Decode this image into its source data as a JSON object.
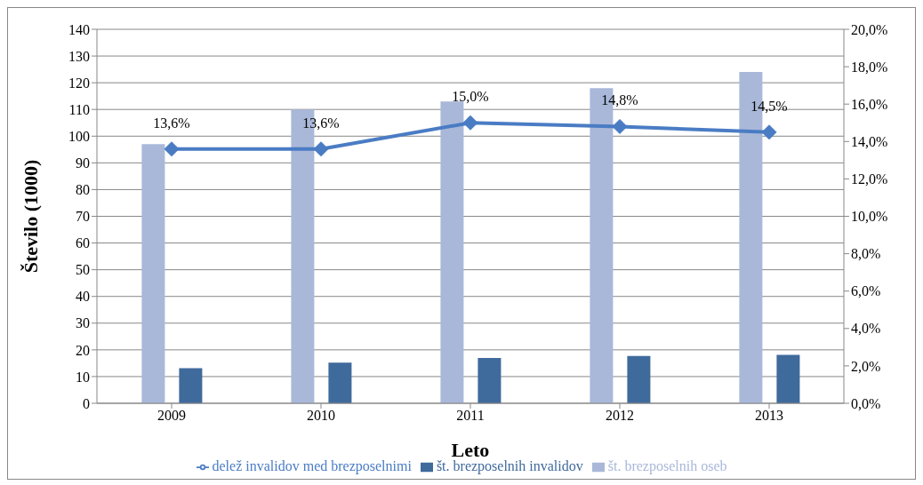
{
  "chart_data": {
    "type": "bar",
    "xlabel": "Leto",
    "ylabel": "Število (1000)",
    "categories": [
      "2009",
      "2010",
      "2011",
      "2012",
      "2013"
    ],
    "series": [
      {
        "name": "št. brezposelnih oseb",
        "color": "#a9b8d9",
        "values": [
          97,
          110,
          113,
          118,
          124
        ]
      },
      {
        "name": "št. brezposelnih invalidov",
        "color": "#3f6a9c",
        "values": [
          13.1,
          15.2,
          17,
          17.7,
          18.1
        ]
      },
      {
        "name": "delež invalidov med brezposelnimi",
        "type": "line",
        "axis": "y2",
        "color": "#4a7cc4",
        "marker": "diamond",
        "values": [
          13.6,
          13.6,
          15.0,
          14.8,
          14.5
        ],
        "value_labels": [
          "13,6%",
          "13,6%",
          "15,0%",
          "14,8%",
          "14,5%"
        ]
      }
    ],
    "ylim": [
      0,
      140
    ],
    "yticks": [
      0,
      10,
      20,
      30,
      40,
      50,
      60,
      70,
      80,
      90,
      100,
      110,
      120,
      130,
      140
    ],
    "y2lim": [
      0,
      20
    ],
    "y2ticks": [
      {
        "value": 0,
        "label": "0,0%"
      },
      {
        "value": 2,
        "label": "2,0%"
      },
      {
        "value": 4,
        "label": "4,0%"
      },
      {
        "value": 6,
        "label": "6,0%"
      },
      {
        "value": 8,
        "label": "8,0%"
      },
      {
        "value": 10,
        "label": "10,0%"
      },
      {
        "value": 12,
        "label": "12,0%"
      },
      {
        "value": 14,
        "label": "14,0%"
      },
      {
        "value": 16,
        "label": "16,0%"
      },
      {
        "value": 18,
        "label": "18,0%"
      },
      {
        "value": 20,
        "label": "20,0%"
      }
    ],
    "grid": "y",
    "legend": "bottom"
  }
}
